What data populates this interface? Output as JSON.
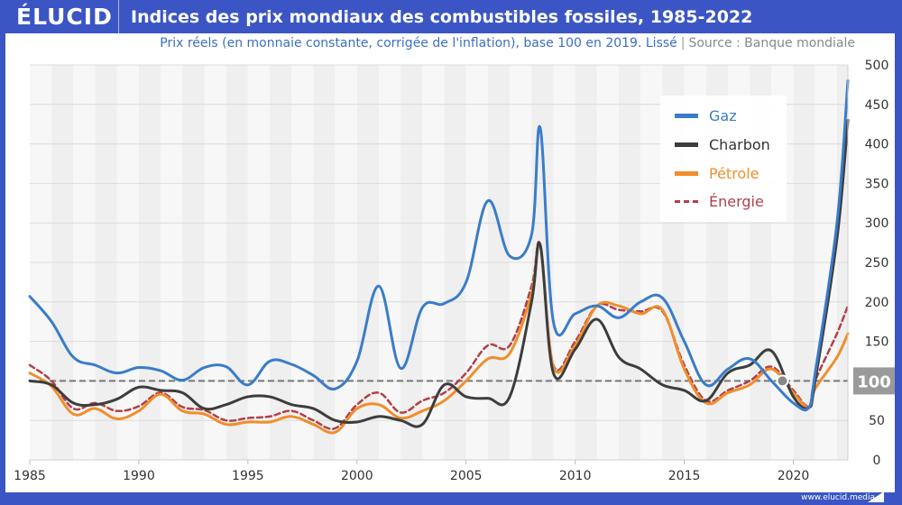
{
  "header": {
    "logo": "ÉLUCID",
    "title": "Indices des prix mondiaux des combustibles fossiles, 1985-2022"
  },
  "subtitle": {
    "text": "Prix réels (en monnaie constante, corrigée de l'inflation), base 100 en 2019. Lissé",
    "separator": "|",
    "source": "Source : Banque mondiale"
  },
  "footer": {
    "url": "www.elucid.media"
  },
  "legend": {
    "items": [
      {
        "label": "Gaz",
        "color": "#3a7cc9",
        "style": "solid"
      },
      {
        "label": "Charbon",
        "color": "#3d3d3d",
        "style": "solid"
      },
      {
        "label": "Pétrole",
        "color": "#f08e2c",
        "style": "solid"
      },
      {
        "label": "Énergie",
        "color": "#b0404a",
        "style": "dashed"
      }
    ]
  },
  "chart_data": {
    "type": "line",
    "title": "Indices des prix mondiaux des combustibles fossiles, 1985-2022",
    "subtitle": "Prix réels (en monnaie constante, corrigée de l'inflation), base 100 en 2019. Lissé",
    "xlabel": "",
    "ylabel": "",
    "xlim": [
      1985,
      2022.5
    ],
    "ylim": [
      0,
      500
    ],
    "x_ticks": [
      "1985",
      "1990",
      "1995",
      "2000",
      "2005",
      "2010",
      "2015",
      "2020"
    ],
    "y_ticks": [
      "0",
      "50",
      "100",
      "150",
      "200",
      "250",
      "300",
      "350",
      "400",
      "450",
      "500"
    ],
    "y_axis_position": "right",
    "grid": true,
    "legend_position": "top-right",
    "reference_line": {
      "value": 100,
      "label": "100",
      "style": "dashed"
    },
    "reference_point": {
      "x": 2019.5,
      "y": 100
    },
    "x": [
      1985,
      1986,
      1987,
      1988,
      1989,
      1990,
      1991,
      1992,
      1993,
      1994,
      1995,
      1996,
      1997,
      1998,
      1999,
      2000,
      2001,
      2002,
      2003,
      2004,
      2005,
      2006,
      2007,
      2008,
      2008.4,
      2009,
      2010,
      2011,
      2012,
      2013,
      2014,
      2015,
      2016,
      2017,
      2018,
      2019,
      2020,
      2020.7,
      2021,
      2022,
      2022.5
    ],
    "series": [
      {
        "name": "Gaz",
        "color": "#3a7cc9",
        "values": [
          207,
          175,
          130,
          120,
          110,
          117,
          113,
          101,
          117,
          118,
          95,
          125,
          121,
          107,
          90,
          125,
          220,
          116,
          193,
          198,
          225,
          328,
          258,
          285,
          420,
          175,
          185,
          195,
          180,
          200,
          205,
          150,
          95,
          115,
          128,
          100,
          72,
          66,
          110,
          300,
          480
        ]
      },
      {
        "name": "Charbon",
        "color": "#3d3d3d",
        "values": [
          100,
          95,
          72,
          70,
          77,
          92,
          88,
          85,
          65,
          70,
          80,
          80,
          70,
          65,
          50,
          48,
          55,
          50,
          45,
          95,
          80,
          78,
          80,
          200,
          272,
          110,
          140,
          178,
          130,
          115,
          95,
          88,
          75,
          110,
          120,
          138,
          80,
          66,
          100,
          280,
          430
        ]
      },
      {
        "name": "Pétrole",
        "color": "#f08e2c",
        "values": [
          110,
          93,
          58,
          65,
          52,
          62,
          83,
          62,
          58,
          45,
          48,
          48,
          55,
          45,
          35,
          65,
          70,
          53,
          62,
          75,
          100,
          128,
          135,
          210,
          270,
          118,
          145,
          195,
          195,
          185,
          190,
          115,
          72,
          85,
          95,
          115,
          85,
          66,
          90,
          130,
          160
        ]
      },
      {
        "name": "Énergie",
        "color": "#b0404a",
        "values": [
          120,
          100,
          65,
          72,
          62,
          68,
          85,
          67,
          63,
          50,
          53,
          55,
          62,
          50,
          40,
          70,
          85,
          60,
          75,
          85,
          110,
          145,
          145,
          220,
          272,
          120,
          150,
          195,
          190,
          188,
          188,
          120,
          75,
          88,
          100,
          118,
          88,
          68,
          100,
          160,
          195
        ]
      }
    ]
  }
}
